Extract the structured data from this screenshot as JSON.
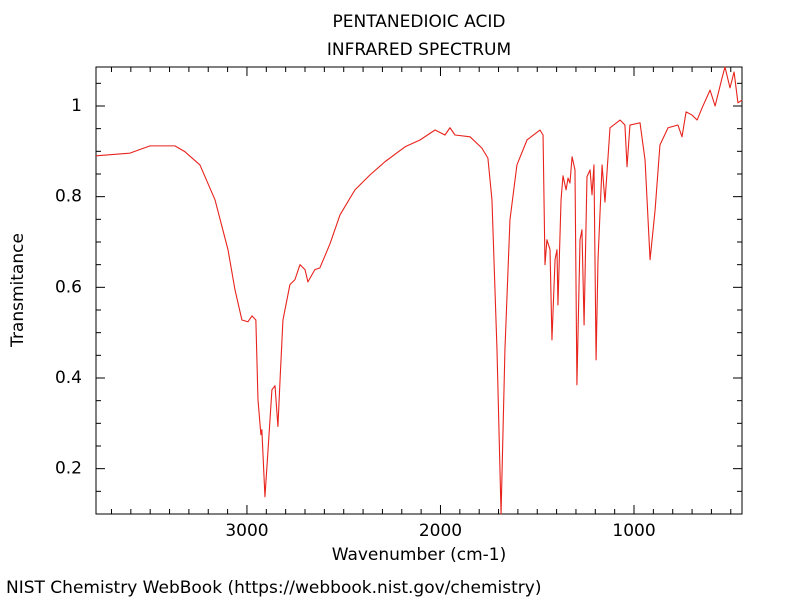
{
  "chart_data": {
    "type": "line",
    "title": "PENTANEDIOIC ACID",
    "subtitle": "INFRARED SPECTRUM",
    "x_label": "Wavenumber (cm-1)",
    "y_label": "Transmitance",
    "source": "NIST Chemistry WebBook (https://webbook.nist.gov/chemistry)",
    "color": "#e8231c",
    "xlim": [
      3780,
      442
    ],
    "ylim": [
      0.1,
      1.086
    ],
    "xticks": [
      3000,
      2000,
      1000
    ],
    "yticks": [
      0.2,
      0.4,
      0.6,
      0.8,
      1
    ],
    "xminorticks": [
      3700,
      3600,
      3500,
      3400,
      3300,
      3200,
      3100,
      2900,
      2800,
      2700,
      2600,
      2500,
      2400,
      2300,
      2200,
      2100,
      1900,
      1800,
      1700,
      1600,
      1500,
      1400,
      1300,
      1200,
      1100,
      900,
      800,
      700,
      600,
      500
    ],
    "yminorticks": [
      0.15,
      0.25,
      0.3,
      0.35,
      0.45,
      0.5,
      0.55,
      0.65,
      0.7,
      0.75,
      0.85,
      0.9,
      0.95,
      1.05
    ],
    "x": [
      3780,
      3605,
      3501,
      3372,
      3320,
      3243,
      3165,
      3098,
      3062,
      3026,
      2995,
      2974,
      2954,
      2943,
      2928,
      2923,
      2907,
      2891,
      2871,
      2855,
      2840,
      2829,
      2814,
      2778,
      2752,
      2726,
      2700,
      2685,
      2649,
      2623,
      2571,
      2519,
      2442,
      2364,
      2287,
      2183,
      2106,
      2028,
      1977,
      1951,
      1925,
      1847,
      1786,
      1755,
      1734,
      1708,
      1687,
      1667,
      1641,
      1605,
      1553,
      1486,
      1470,
      1460,
      1450,
      1434,
      1424,
      1408,
      1398,
      1393,
      1377,
      1367,
      1351,
      1341,
      1331,
      1320,
      1305,
      1295,
      1279,
      1269,
      1258,
      1243,
      1227,
      1217,
      1207,
      1196,
      1186,
      1165,
      1150,
      1124,
      1072,
      1047,
      1036,
      1021,
      969,
      943,
      917,
      891,
      866,
      824,
      773,
      752,
      731,
      700,
      674,
      648,
      607,
      581,
      545,
      530,
      504,
      483,
      463,
      442
    ],
    "values": [
      0.89,
      0.896,
      0.912,
      0.912,
      0.899,
      0.87,
      0.793,
      0.683,
      0.595,
      0.528,
      0.524,
      0.537,
      0.528,
      0.352,
      0.275,
      0.286,
      0.138,
      0.242,
      0.374,
      0.383,
      0.293,
      0.396,
      0.528,
      0.606,
      0.617,
      0.65,
      0.639,
      0.612,
      0.639,
      0.643,
      0.696,
      0.76,
      0.815,
      0.848,
      0.877,
      0.91,
      0.925,
      0.947,
      0.936,
      0.952,
      0.936,
      0.932,
      0.907,
      0.885,
      0.793,
      0.462,
      0.1,
      0.462,
      0.749,
      0.87,
      0.925,
      0.947,
      0.936,
      0.65,
      0.705,
      0.683,
      0.484,
      0.661,
      0.683,
      0.561,
      0.793,
      0.846,
      0.815,
      0.841,
      0.83,
      0.888,
      0.859,
      0.385,
      0.705,
      0.727,
      0.517,
      0.844,
      0.859,
      0.804,
      0.87,
      0.44,
      0.661,
      0.87,
      0.788,
      0.952,
      0.969,
      0.958,
      0.866,
      0.958,
      0.963,
      0.881,
      0.661,
      0.771,
      0.914,
      0.952,
      0.958,
      0.932,
      0.987,
      0.98,
      0.969,
      0.996,
      1.035,
      1.0,
      1.062,
      1.086,
      1.04,
      1.075,
      1.007,
      1.013
    ]
  }
}
